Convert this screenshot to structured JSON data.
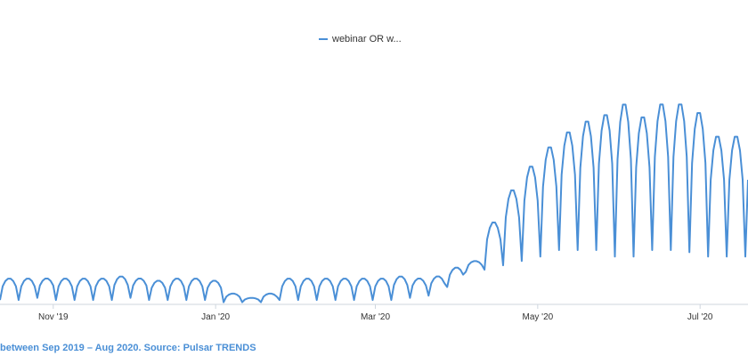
{
  "legend": {
    "label": "webinar OR w..."
  },
  "caption": "between Sep 2019 – Aug 2020. Source: Pulsar TRENDS",
  "colors": {
    "series": "#4a8fd6",
    "caption": "#4a8fd6",
    "axis": "#cfd6de"
  },
  "chart_data": {
    "type": "line",
    "title": "",
    "xlabel": "",
    "ylabel": "",
    "x_start": "2019-10-12",
    "x_end": "2020-07-19",
    "x_ticks": [
      {
        "label": "Nov '19",
        "date": "2019-11-01"
      },
      {
        "label": "Jan '20",
        "date": "2020-01-01"
      },
      {
        "label": "Mar '20",
        "date": "2020-03-01"
      },
      {
        "label": "May '20",
        "date": "2020-05-01"
      },
      {
        "label": "Jul '20",
        "date": "2020-07-01"
      }
    ],
    "ylim": [
      0,
      100
    ],
    "grid": false,
    "legend_position": "top-center",
    "series": [
      {
        "name": "webinar OR w...",
        "weekly_peaks": [
          12,
          12,
          12,
          12,
          12,
          12,
          13,
          12,
          11,
          12,
          12,
          11,
          5,
          3,
          5,
          12,
          12,
          12,
          12,
          12,
          12,
          13,
          12,
          13,
          17,
          20,
          38,
          53,
          64,
          73,
          80,
          85,
          88,
          93,
          87,
          93,
          93,
          89,
          78
        ],
        "weekly_troughs": [
          2,
          2,
          3,
          2,
          2,
          2,
          2,
          3,
          2,
          2,
          2,
          2,
          1,
          1,
          1,
          2,
          2,
          2,
          2,
          2,
          2,
          2,
          3,
          4,
          8,
          15,
          16,
          18,
          20,
          22,
          25,
          25,
          25,
          22,
          22,
          25,
          25,
          24,
          22
        ]
      }
    ]
  }
}
